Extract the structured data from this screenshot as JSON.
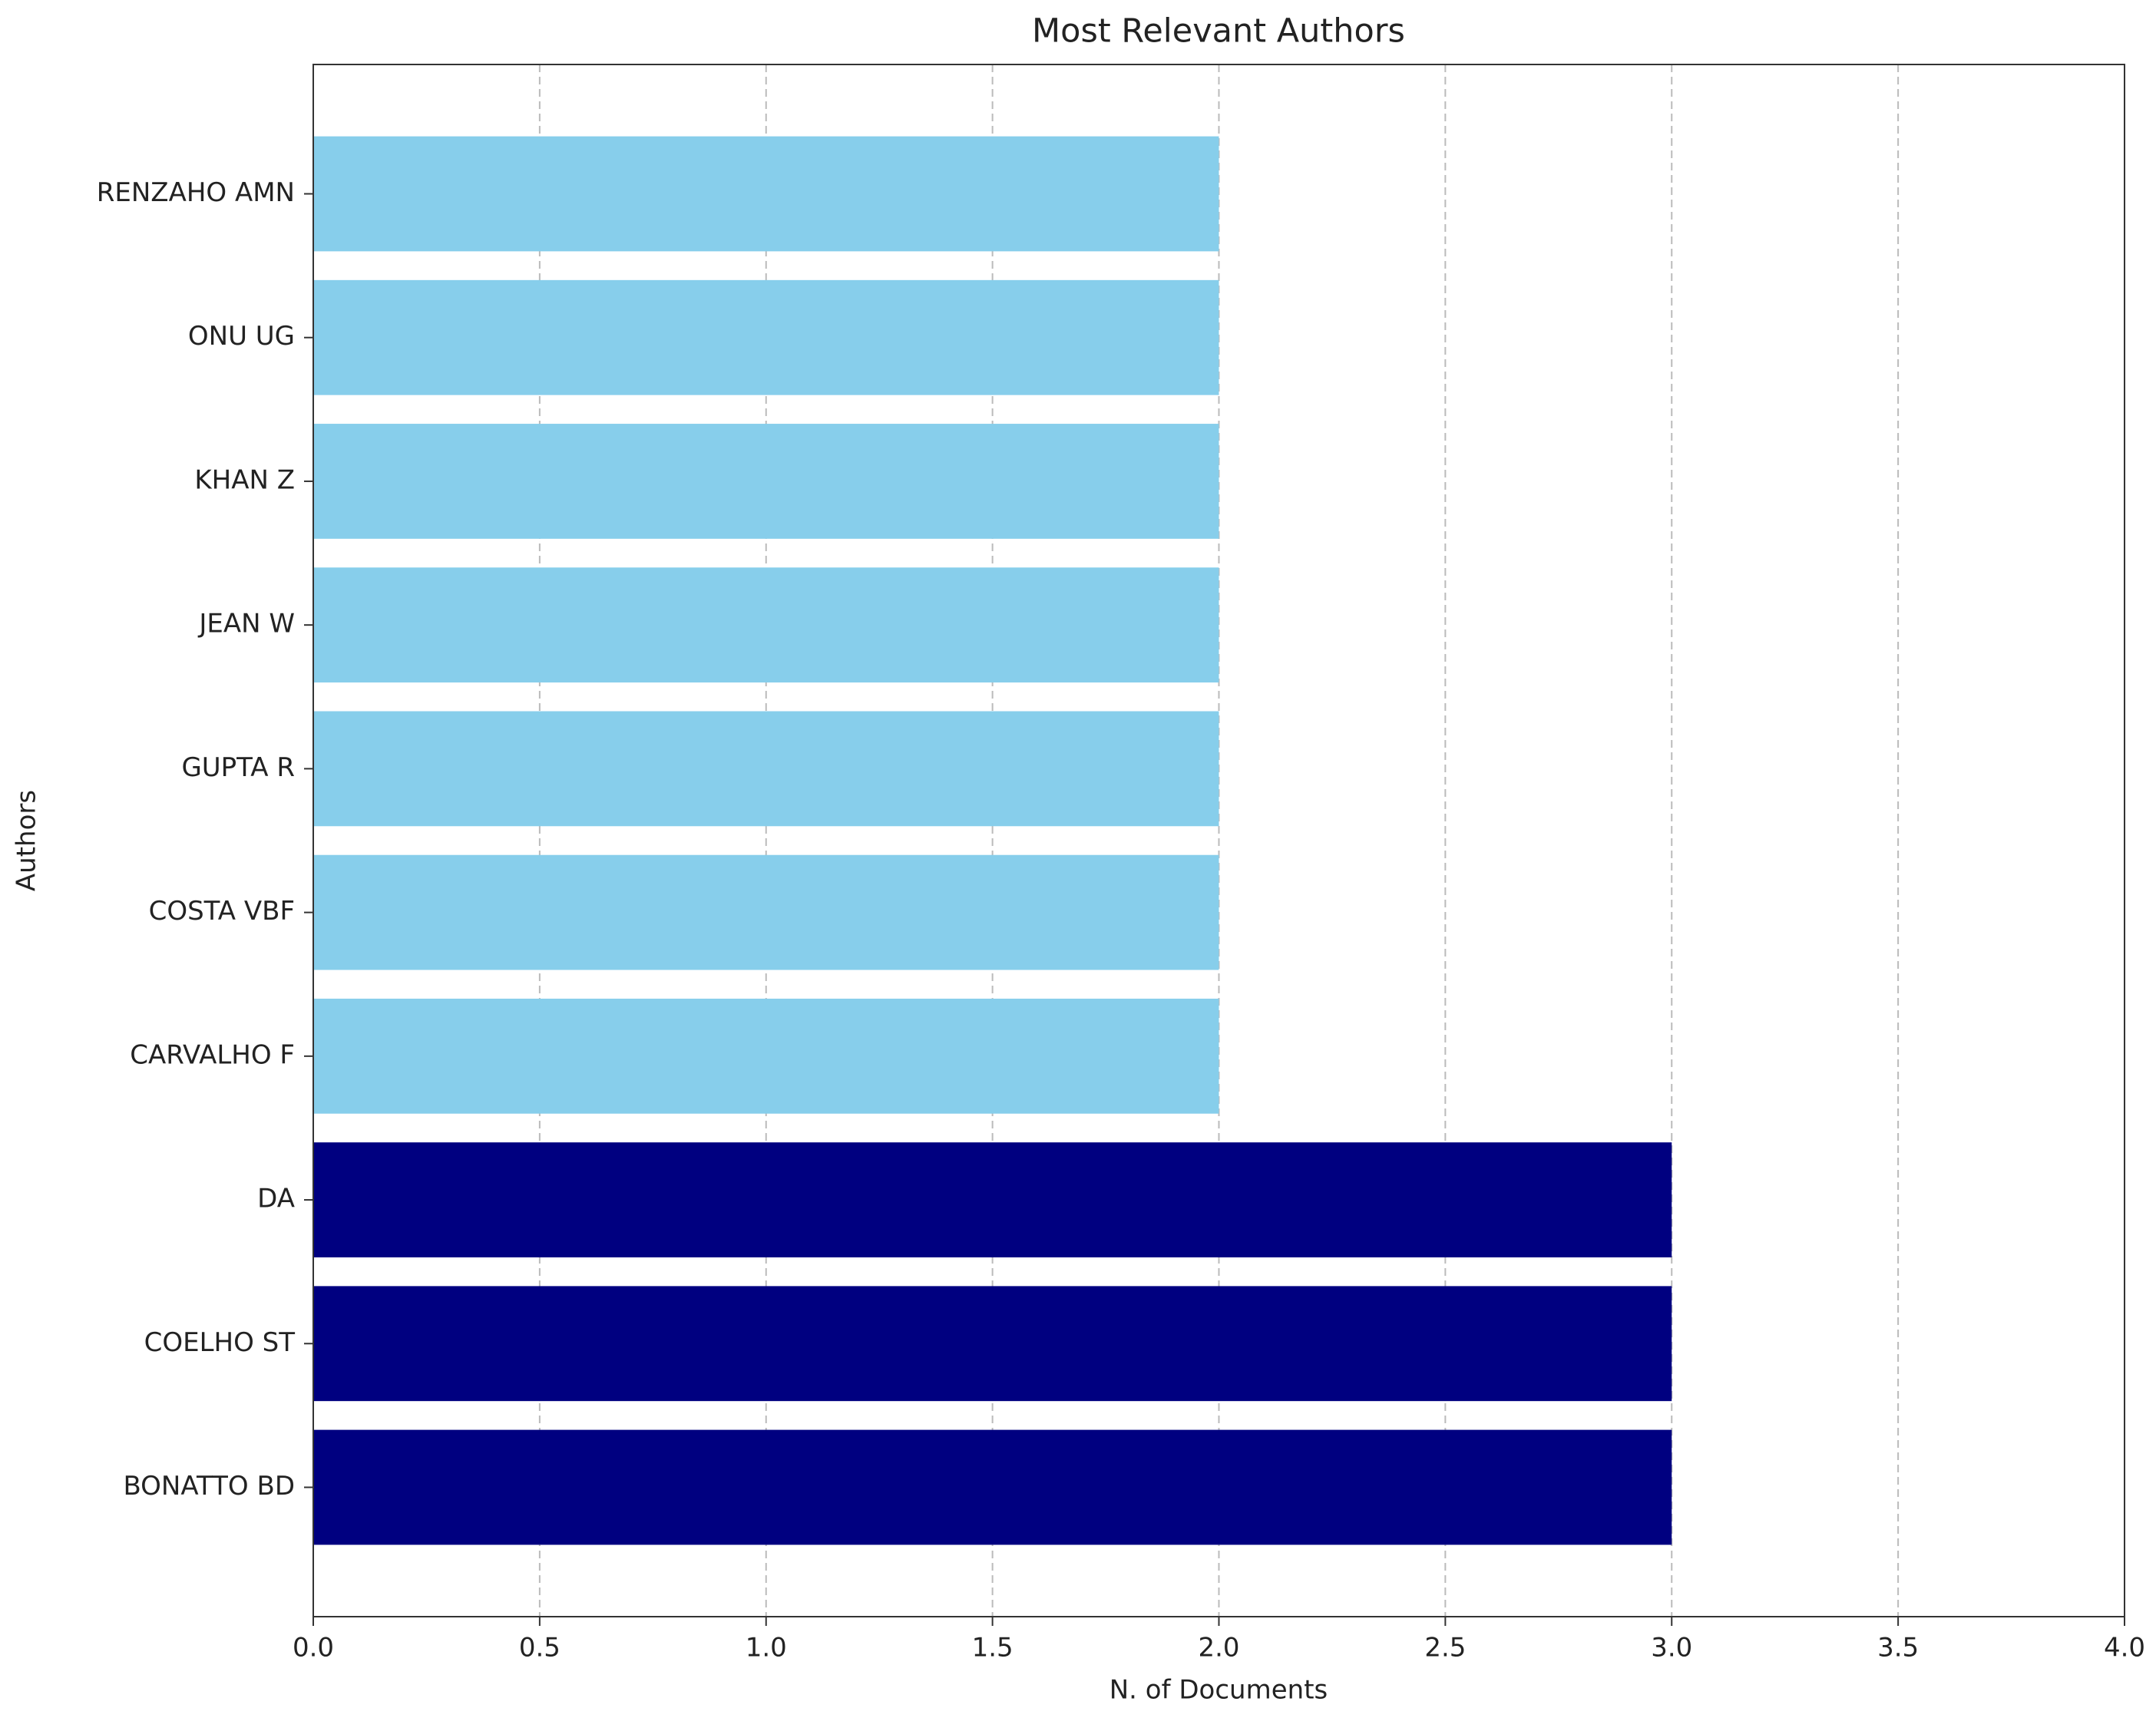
{
  "chart_data": {
    "type": "barh",
    "title": "Most Relevant Authors",
    "x_label": "N. of Documents",
    "y_label": "Authors",
    "categories": [
      "BONATTO BD",
      "COELHO ST",
      "DA",
      "CARVALHO F",
      "COSTA VBF",
      "GUPTA R",
      "JEAN W",
      "KHAN Z",
      "ONU UG",
      "RENZAHO AMN"
    ],
    "values": [
      3,
      3,
      3,
      2,
      2,
      2,
      2,
      2,
      2,
      2
    ],
    "colors": [
      "#000080",
      "#000080",
      "#000080",
      "#87ceeb",
      "#87ceeb",
      "#87ceeb",
      "#87ceeb",
      "#87ceeb",
      "#87ceeb",
      "#87ceeb"
    ],
    "xlim": [
      0,
      4
    ],
    "xticks": [
      {
        "value": 0,
        "label": "0.0"
      },
      {
        "value": 0.5,
        "label": "0.5"
      },
      {
        "value": 1,
        "label": "1.0"
      },
      {
        "value": 1.5,
        "label": "1.5"
      },
      {
        "value": 2,
        "label": "2.0"
      },
      {
        "value": 2.5,
        "label": "2.5"
      },
      {
        "value": 3,
        "label": "3.0"
      },
      {
        "value": 3.5,
        "label": "3.5"
      },
      {
        "value": 4,
        "label": "4.0"
      }
    ],
    "grid": true
  }
}
